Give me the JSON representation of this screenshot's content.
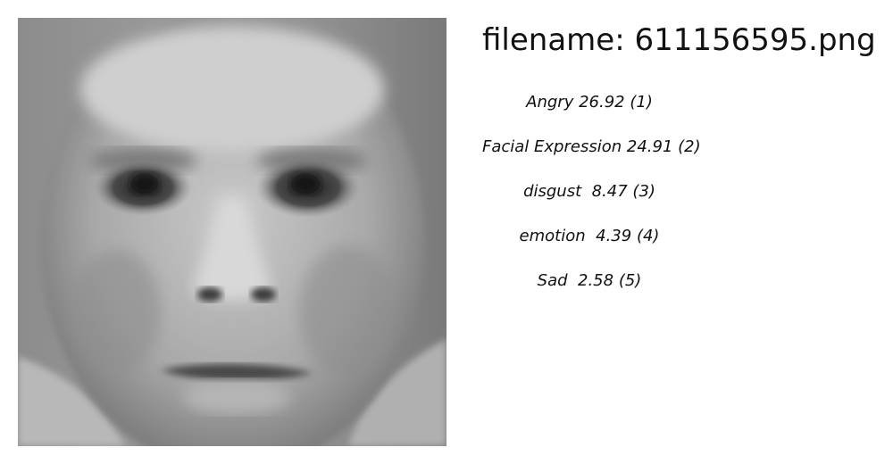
{
  "filename": {
    "prefix": "filename:",
    "value": "611156595.png"
  },
  "predictions": [
    {
      "label": "Angry",
      "score": "26.92",
      "rank": "(1)"
    },
    {
      "label": "Facial Expression",
      "score": "24.91",
      "rank": "(2)"
    },
    {
      "label": "disgust",
      "score": " 8.47",
      "rank": "(3)"
    },
    {
      "label": "emotion",
      "score": " 4.39",
      "rank": "(4)"
    },
    {
      "label": "Sad",
      "score": " 2.58",
      "rank": "(5)"
    }
  ]
}
